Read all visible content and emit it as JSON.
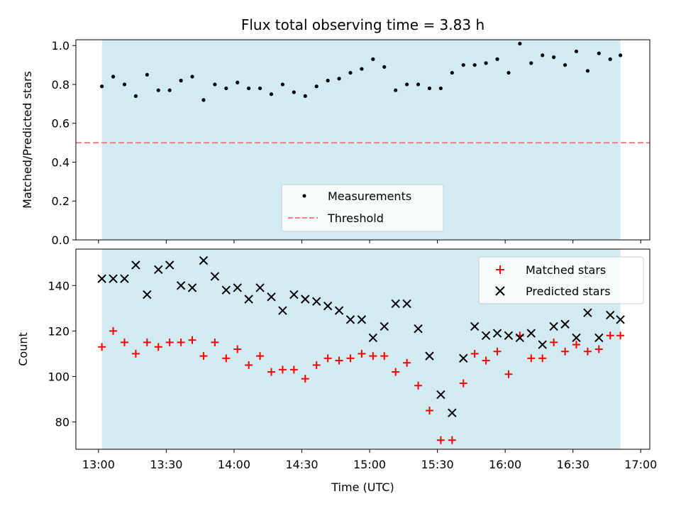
{
  "chart_data": [
    {
      "type": "scatter",
      "panel": "top",
      "title": "Flux total observing time = 3.83 h",
      "xlabel": "",
      "ylabel": "Matched/Predicted stars",
      "ylim": [
        0,
        1.03
      ],
      "yticks": [
        "0.0",
        "0.2",
        "0.4",
        "0.6",
        "0.8",
        "1.0"
      ],
      "ytick_values": [
        0,
        0.2,
        0.4,
        0.6,
        0.8,
        1.0
      ],
      "shaded_span_minutes": [
        1.5,
        231
      ],
      "shade_color": "#add8e6",
      "legend_placement": "lower center",
      "series": [
        {
          "name": "Measurements",
          "marker": "dot",
          "color": "#000000",
          "x_minutes": [
            1.5,
            6.5,
            11.5,
            16.5,
            21.5,
            26.5,
            31.5,
            36.5,
            41.5,
            46.5,
            51.5,
            56.5,
            61.5,
            66.5,
            71.5,
            76.5,
            81.5,
            86.5,
            91.5,
            96.5,
            101.5,
            106.5,
            111.5,
            116.5,
            121.5,
            126.5,
            131.5,
            136.5,
            141.5,
            146.5,
            151.5,
            156.5,
            161.5,
            166.5,
            171.5,
            176.5,
            181.5,
            186.5,
            191.5,
            196.5,
            201.5,
            206.5,
            211.5,
            216.5,
            221.5,
            226.5,
            231
          ],
          "values": [
            0.79,
            0.84,
            0.8,
            0.74,
            0.85,
            0.77,
            0.77,
            0.82,
            0.84,
            0.72,
            0.8,
            0.78,
            0.81,
            0.78,
            0.78,
            0.75,
            0.8,
            0.76,
            0.74,
            0.79,
            0.82,
            0.83,
            0.86,
            0.88,
            0.93,
            0.89,
            0.77,
            0.8,
            0.8,
            0.78,
            0.78,
            0.86,
            0.9,
            0.9,
            0.91,
            0.93,
            0.86,
            1.01,
            0.91,
            0.95,
            0.94,
            0.9,
            0.97,
            0.87,
            0.96,
            0.93,
            0.95
          ]
        },
        {
          "name": "Threshold",
          "marker": "dashed-line",
          "color": "#f08080",
          "y": 0.5
        }
      ]
    },
    {
      "type": "scatter",
      "panel": "bottom",
      "title": "",
      "xlabel": "Time (UTC)",
      "ylabel": "Count",
      "ylim": [
        68,
        156
      ],
      "yticks": [
        "80",
        "100",
        "120",
        "140"
      ],
      "ytick_values": [
        80,
        100,
        120,
        140
      ],
      "xlim_minutes": [
        -10,
        244
      ],
      "xticks": [
        "13:00",
        "13:30",
        "14:00",
        "14:30",
        "15:00",
        "15:30",
        "16:00",
        "16:30",
        "17:00"
      ],
      "xtick_values_minutes": [
        0,
        30,
        60,
        90,
        120,
        150,
        180,
        210,
        240
      ],
      "shaded_span_minutes": [
        1.5,
        231
      ],
      "shade_color": "#add8e6",
      "legend_placement": "upper right",
      "x_minutes": [
        1.5,
        6.5,
        11.5,
        16.5,
        21.5,
        26.5,
        31.5,
        36.5,
        41.5,
        46.5,
        51.5,
        56.5,
        61.5,
        66.5,
        71.5,
        76.5,
        81.5,
        86.5,
        91.5,
        96.5,
        101.5,
        106.5,
        111.5,
        116.5,
        121.5,
        126.5,
        131.5,
        136.5,
        141.5,
        146.5,
        151.5,
        156.5,
        161.5,
        166.5,
        171.5,
        176.5,
        181.5,
        186.5,
        191.5,
        196.5,
        201.5,
        206.5,
        211.5,
        216.5,
        221.5,
        226.5,
        231
      ],
      "series": [
        {
          "name": "Matched stars",
          "marker": "plus",
          "color": "#ff0000",
          "values": [
            113,
            120,
            115,
            110,
            115,
            113,
            115,
            115,
            116,
            109,
            115,
            108,
            112,
            105,
            109,
            102,
            103,
            103,
            99,
            105,
            108,
            107,
            108,
            110,
            109,
            109,
            102,
            106,
            96,
            85,
            72,
            72,
            97,
            110,
            107,
            111,
            101,
            118,
            108,
            108,
            115,
            111,
            114,
            111,
            112,
            118,
            118
          ]
        },
        {
          "name": "Predicted stars",
          "marker": "x",
          "color": "#000000",
          "values": [
            143,
            143,
            143,
            149,
            136,
            147,
            149,
            140,
            139,
            151,
            144,
            138,
            139,
            134,
            139,
            135,
            129,
            136,
            134,
            133,
            131,
            129,
            125,
            125,
            117,
            122,
            132,
            132,
            121,
            109,
            92,
            84,
            108,
            122,
            118,
            119,
            118,
            117,
            119,
            114,
            122,
            123,
            117,
            128,
            117,
            127,
            125
          ]
        }
      ]
    }
  ]
}
